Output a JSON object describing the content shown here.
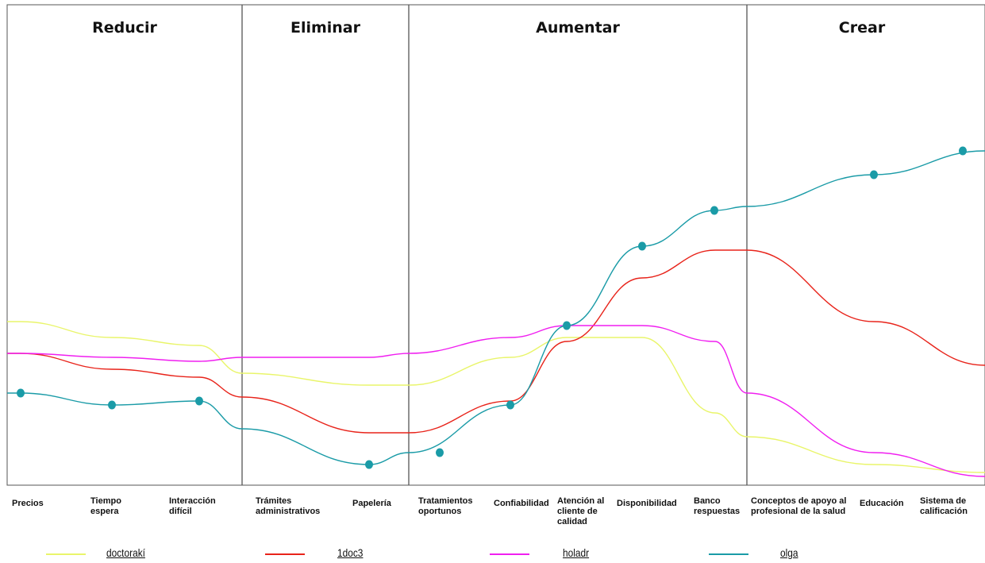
{
  "chart_data": {
    "type": "line",
    "title": "",
    "xlabel": "",
    "ylabel": "",
    "sections": [
      {
        "name": "Reducir"
      },
      {
        "name": "Eliminar"
      },
      {
        "name": "Aumentar"
      },
      {
        "name": "Crear"
      }
    ],
    "categories": [
      "Precios",
      "Tiempo\nespera",
      "Interacción\ndifícil",
      "Trámites\nadministrativos",
      "Papelería",
      "Tratamientos\noportunos",
      "Confiabilidad",
      "Atención al\ncliente de\ncalidad",
      "Disponibilidad",
      "Banco\nrespuestas",
      "Conceptos de apoyo al\nprofesional de la salud",
      "Educación",
      "Sistema de\ncalificación"
    ],
    "ylim": [
      0,
      10
    ],
    "grid": false,
    "legend_position": "bottom",
    "series": [
      {
        "name": "doctorakí",
        "color": "#e9f56a",
        "values": [
          3.9,
          3.5,
          3.3,
          2.6,
          2.3,
          2.3,
          3.0,
          3.5,
          3.5,
          1.6,
          1.0,
          0.3,
          0.1
        ]
      },
      {
        "name": "1doc3",
        "color": "#e8231a",
        "values": [
          3.1,
          2.7,
          2.5,
          2.0,
          1.1,
          1.1,
          1.9,
          3.4,
          5.0,
          5.7,
          5.7,
          3.9,
          2.8
        ]
      },
      {
        "name": "holadr",
        "color": "#f01ff0",
        "values": [
          3.1,
          3.0,
          2.9,
          3.0,
          3.0,
          3.1,
          3.5,
          3.8,
          3.8,
          3.4,
          2.1,
          0.6,
          0.0
        ]
      },
      {
        "name": "olga",
        "color": "#1a9ba7",
        "values": [
          2.1,
          1.8,
          1.9,
          1.2,
          0.3,
          0.6,
          1.8,
          3.8,
          5.8,
          6.7,
          6.8,
          7.6,
          8.2
        ]
      }
    ]
  }
}
